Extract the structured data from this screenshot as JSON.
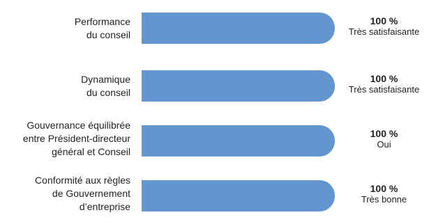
{
  "chart_data": {
    "type": "bar",
    "orientation": "horizontal",
    "categories": [
      "Performance\ndu conseil",
      "Dynamique\ndu conseil",
      "Gouvernance équilibrée\nentre Président-directeur\ngénéral et Conseil",
      "Conformité aux règles\nde Gouvernement\nd’entreprise"
    ],
    "values": [
      100,
      100,
      100,
      100
    ],
    "value_labels": [
      "100 %",
      "100 %",
      "100 %",
      "100 %"
    ],
    "descriptions": [
      "Très satisfaisante",
      "Très satisfaisante",
      "Oui",
      "Très bonne"
    ],
    "xlim": [
      0,
      100
    ],
    "bar_color": "#6395cf",
    "grid": false,
    "legend": "none"
  }
}
